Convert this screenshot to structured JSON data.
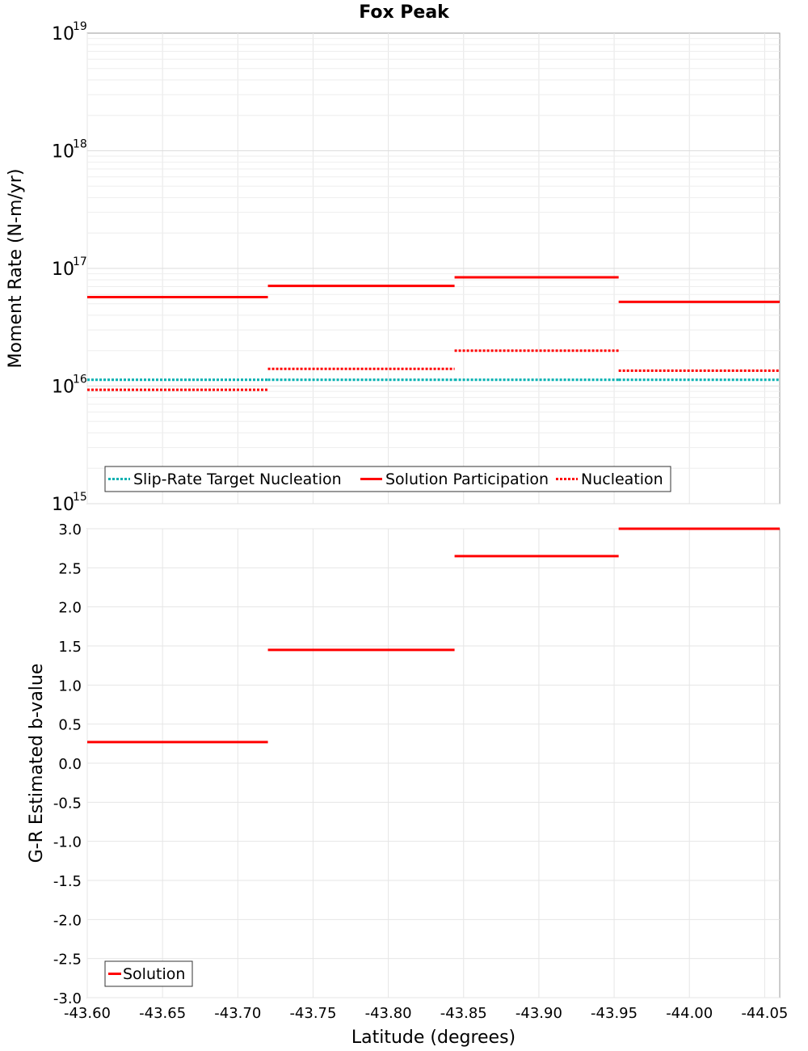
{
  "chart_data": [
    {
      "type": "line",
      "title": "Fox Peak",
      "xlabel": "",
      "ylabel": "Moment Rate (N-m/yr)",
      "yscale": "log",
      "xlim": [
        -43.6,
        -44.06
      ],
      "ylim": [
        1000000000000000.0,
        1e+19
      ],
      "grid": true,
      "legend_position": "bottom-left",
      "y_ticks": [
        {
          "base": "10",
          "exp": "15",
          "value": 1000000000000000.0
        },
        {
          "base": "10",
          "exp": "16",
          "value": 1e+16
        },
        {
          "base": "10",
          "exp": "17",
          "value": 1e+17
        },
        {
          "base": "10",
          "exp": "18",
          "value": 1e+18
        },
        {
          "base": "10",
          "exp": "19",
          "value": 1e+19
        }
      ],
      "series": [
        {
          "name": "Slip-Rate Target Nucleation",
          "color": "#00b0b0",
          "style": "dotted",
          "segments": [
            {
              "x": [
                -43.6,
                -43.72
              ],
              "y": 1.13e+16
            },
            {
              "x": [
                -43.72,
                -43.844
              ],
              "y": 1.13e+16
            },
            {
              "x": [
                -43.844,
                -43.953
              ],
              "y": 1.13e+16
            },
            {
              "x": [
                -43.953,
                -44.06
              ],
              "y": 1.13e+16
            }
          ]
        },
        {
          "name": "Solution Participation",
          "color": "#ff0000",
          "style": "solid",
          "segments": [
            {
              "x": [
                -43.6,
                -43.72
              ],
              "y": 5.7e+16
            },
            {
              "x": [
                -43.72,
                -43.844
              ],
              "y": 7.1e+16
            },
            {
              "x": [
                -43.844,
                -43.953
              ],
              "y": 8.4e+16
            },
            {
              "x": [
                -43.953,
                -44.06
              ],
              "y": 5.2e+16
            }
          ]
        },
        {
          "name": "Nucleation",
          "color": "#ff0000",
          "style": "dotted",
          "segments": [
            {
              "x": [
                -43.6,
                -43.72
              ],
              "y": 9300000000000000.0
            },
            {
              "x": [
                -43.72,
                -43.844
              ],
              "y": 1.4e+16
            },
            {
              "x": [
                -43.844,
                -43.953
              ],
              "y": 2e+16
            },
            {
              "x": [
                -43.953,
                -44.06
              ],
              "y": 1.35e+16
            }
          ]
        }
      ]
    },
    {
      "type": "line",
      "title": "",
      "xlabel": "Latitude (degrees)",
      "ylabel": "G-R Estimated b-value",
      "xlim": [
        -43.6,
        -44.06
      ],
      "ylim": [
        -3.0,
        3.0
      ],
      "grid": true,
      "legend_position": "bottom-left",
      "y_ticks": [
        "-3.0",
        "-2.5",
        "-2.0",
        "-1.5",
        "-1.0",
        "-0.5",
        "0.0",
        "0.5",
        "1.0",
        "1.5",
        "2.0",
        "2.5",
        "3.0"
      ],
      "x_ticks": [
        "-43.60",
        "-43.65",
        "-43.70",
        "-43.75",
        "-43.80",
        "-43.85",
        "-43.90",
        "-43.95",
        "-44.00",
        "-44.05"
      ],
      "series": [
        {
          "name": "Solution",
          "color": "#ff0000",
          "style": "solid",
          "segments": [
            {
              "x": [
                -43.6,
                -43.72
              ],
              "y": 0.27
            },
            {
              "x": [
                -43.72,
                -43.844
              ],
              "y": 1.45
            },
            {
              "x": [
                -43.844,
                -43.953
              ],
              "y": 2.65
            },
            {
              "x": [
                -43.953,
                -44.06
              ],
              "y": 3.0
            }
          ]
        }
      ]
    }
  ]
}
